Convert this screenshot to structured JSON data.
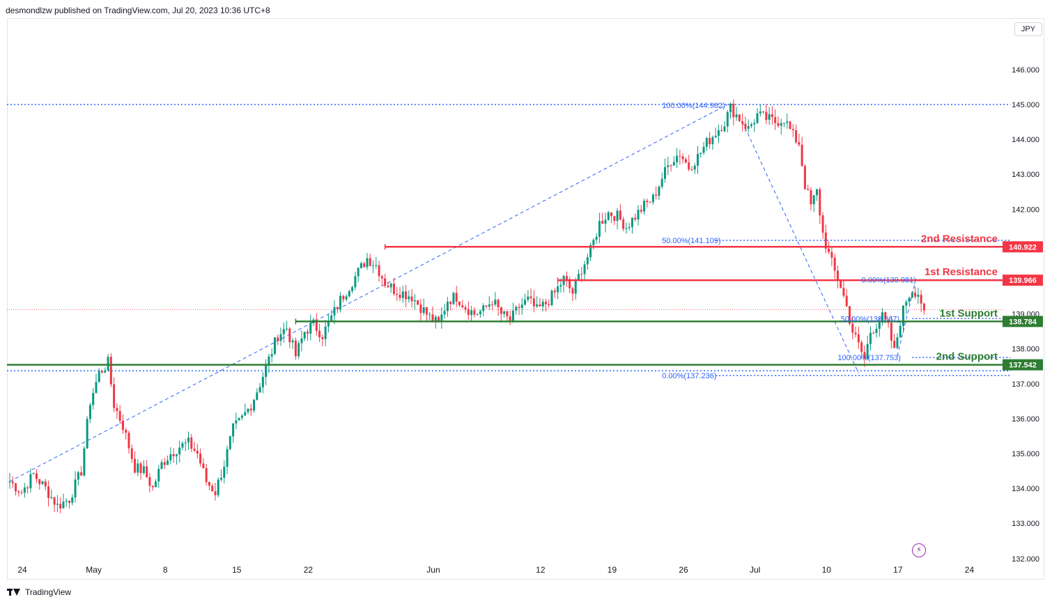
{
  "header": {
    "publisher": "desmondlzw published on TradingView.com, Jul 20, 2023 10:36 UTC+8"
  },
  "currency": "JPY",
  "footer": {
    "brand": "TradingView"
  },
  "icons": {
    "bolt": "lightning-icon",
    "logo": "tradingview-logo-icon"
  },
  "colors": {
    "up": "#089981",
    "down": "#f23645",
    "resistance": "#f23645",
    "support": "#2e7d32",
    "fib": "#2962ff"
  },
  "chart_data": {
    "type": "candlestick",
    "title": "",
    "y_ticks": [
      133.0,
      134.0,
      135.0,
      136.0,
      137.0,
      138.0,
      139.0,
      140.0,
      141.0,
      142.0,
      143.0,
      144.0,
      145.0,
      146.0
    ],
    "y_tick_labels": [
      "133.000",
      "134.000",
      "135.000",
      "136.000",
      "137.000",
      "138.000",
      "139.000",
      "140.000",
      "141.000",
      "142.000",
      "143.000",
      "144.000",
      "145.000",
      "146.000"
    ],
    "y_partial_label": "132.000",
    "x_ticks": [
      {
        "label": "24",
        "bar": 0
      },
      {
        "label": "May",
        "bar": 24
      },
      {
        "label": "8",
        "bar": 48
      },
      {
        "label": "15",
        "bar": 72
      },
      {
        "label": "22",
        "bar": 96
      },
      {
        "label": "Jun",
        "bar": 138
      },
      {
        "label": "12",
        "bar": 174
      },
      {
        "label": "19",
        "bar": 198
      },
      {
        "label": "26",
        "bar": 222
      },
      {
        "label": "Jul",
        "bar": 246
      },
      {
        "label": "10",
        "bar": 270
      },
      {
        "label": "17",
        "bar": 294
      },
      {
        "label": "24",
        "bar": 318
      }
    ],
    "levels": [
      {
        "name": "2nd Resistance",
        "value": 140.922,
        "label": "140.922",
        "kind": "resistance",
        "from_bar": 126
      },
      {
        "name": "1st Resistance",
        "value": 139.966,
        "label": "139.966",
        "kind": "resistance",
        "from_bar": 184
      },
      {
        "name": "1st Support",
        "value": 138.784,
        "label": "138.784",
        "kind": "support",
        "from_bar": 96
      },
      {
        "name": "2nd Support",
        "value": 137.542,
        "label": "137.542",
        "kind": "support",
        "from_bar": 0
      }
    ],
    "fib_labels": [
      {
        "text": "100.00%(144.982)",
        "value": 144.982,
        "bar": 219
      },
      {
        "text": "50.00%(141.109)",
        "value": 141.109,
        "bar": 219
      },
      {
        "text": "0.00%(137.236)",
        "value": 137.236,
        "bar": 219
      },
      {
        "text": "0.00%(139.981)",
        "value": 139.981,
        "bar": 286
      },
      {
        "text": "50.00%(138.867)",
        "value": 138.867,
        "bar": 279
      },
      {
        "text": "100.00%(137.753)",
        "value": 137.753,
        "bar": 278
      }
    ],
    "fib_dotted_lines": [
      {
        "value": 145.0,
        "from_bar": -2,
        "to_bar": 336
      },
      {
        "value": 137.37,
        "from_bar": -2,
        "to_bar": 336
      },
      {
        "value": 141.109,
        "from_bar": 237,
        "to_bar": 336
      },
      {
        "value": 137.236,
        "from_bar": 237,
        "to_bar": 336
      },
      {
        "value": 139.981,
        "from_bar": 303,
        "to_bar": 336
      },
      {
        "value": 138.867,
        "from_bar": 303,
        "to_bar": 336
      },
      {
        "value": 137.753,
        "from_bar": 303,
        "to_bar": 336
      }
    ],
    "trend_lines": [
      {
        "from": [
          0,
          134.2
        ],
        "to": [
          241,
          145.0
        ]
      },
      {
        "from": [
          246,
          144.5
        ],
        "to": [
          285,
          137.3
        ]
      },
      {
        "from": [
          298,
          137.8
        ],
        "to": [
          304,
          139.9
        ]
      }
    ],
    "last_price": 139.12,
    "anchors": [
      [
        0,
        134.2
      ],
      [
        4,
        133.9
      ],
      [
        8,
        134.4
      ],
      [
        12,
        134.0
      ],
      [
        16,
        133.5
      ],
      [
        20,
        133.7
      ],
      [
        24,
        134.5
      ],
      [
        27,
        136.5
      ],
      [
        30,
        137.3
      ],
      [
        33,
        137.6
      ],
      [
        35,
        136.4
      ],
      [
        38,
        135.8
      ],
      [
        42,
        134.6
      ],
      [
        45,
        134.5
      ],
      [
        48,
        134.0
      ],
      [
        51,
        134.7
      ],
      [
        54,
        135.0
      ],
      [
        57,
        135.2
      ],
      [
        60,
        135.3
      ],
      [
        63,
        135.0
      ],
      [
        66,
        134.2
      ],
      [
        69,
        133.9
      ],
      [
        72,
        134.7
      ],
      [
        75,
        135.7
      ],
      [
        78,
        136.0
      ],
      [
        81,
        136.4
      ],
      [
        84,
        137.0
      ],
      [
        87,
        137.7
      ],
      [
        90,
        138.4
      ],
      [
        93,
        138.6
      ],
      [
        96,
        137.8
      ],
      [
        99,
        138.5
      ],
      [
        102,
        138.7
      ],
      [
        105,
        138.4
      ],
      [
        108,
        138.9
      ],
      [
        111,
        139.4
      ],
      [
        114,
        139.8
      ],
      [
        117,
        140.2
      ],
      [
        120,
        140.6
      ],
      [
        123,
        140.4
      ],
      [
        126,
        139.9
      ],
      [
        129,
        139.7
      ],
      [
        132,
        139.6
      ],
      [
        135,
        139.5
      ],
      [
        138,
        139.2
      ],
      [
        141,
        138.9
      ],
      [
        144,
        138.7
      ],
      [
        147,
        139.4
      ],
      [
        150,
        139.5
      ],
      [
        153,
        139.2
      ],
      [
        156,
        139.0
      ],
      [
        159,
        139.1
      ],
      [
        162,
        139.4
      ],
      [
        165,
        139.0
      ],
      [
        168,
        138.8
      ],
      [
        171,
        139.2
      ],
      [
        174,
        139.4
      ],
      [
        177,
        139.1
      ],
      [
        180,
        139.3
      ],
      [
        183,
        139.6
      ],
      [
        186,
        140.0
      ],
      [
        189,
        139.6
      ],
      [
        192,
        140.3
      ],
      [
        195,
        140.8
      ],
      [
        198,
        141.6
      ],
      [
        201,
        141.9
      ],
      [
        204,
        141.8
      ],
      [
        207,
        141.5
      ],
      [
        210,
        141.8
      ],
      [
        213,
        142.1
      ],
      [
        216,
        142.3
      ],
      [
        219,
        142.9
      ],
      [
        222,
        143.4
      ],
      [
        225,
        143.6
      ],
      [
        228,
        143.2
      ],
      [
        231,
        143.5
      ],
      [
        234,
        143.9
      ],
      [
        237,
        144.2
      ],
      [
        240,
        144.5
      ],
      [
        242,
        144.9
      ],
      [
        245,
        144.6
      ],
      [
        248,
        144.3
      ],
      [
        251,
        144.7
      ],
      [
        254,
        144.6
      ],
      [
        257,
        144.5
      ],
      [
        260,
        144.6
      ],
      [
        263,
        144.1
      ],
      [
        265,
        143.9
      ],
      [
        267,
        142.7
      ],
      [
        269,
        142.1
      ],
      [
        271,
        142.5
      ],
      [
        273,
        141.3
      ],
      [
        275,
        140.7
      ],
      [
        277,
        140.2
      ],
      [
        279,
        139.8
      ],
      [
        281,
        139.2
      ],
      [
        283,
        138.5
      ],
      [
        285,
        138.1
      ],
      [
        287,
        137.7
      ],
      [
        289,
        138.5
      ],
      [
        291,
        138.7
      ],
      [
        293,
        138.9
      ],
      [
        295,
        138.6
      ],
      [
        297,
        137.9
      ],
      [
        299,
        138.8
      ],
      [
        301,
        139.4
      ],
      [
        303,
        139.7
      ],
      [
        305,
        139.6
      ],
      [
        307,
        139.1
      ]
    ]
  }
}
